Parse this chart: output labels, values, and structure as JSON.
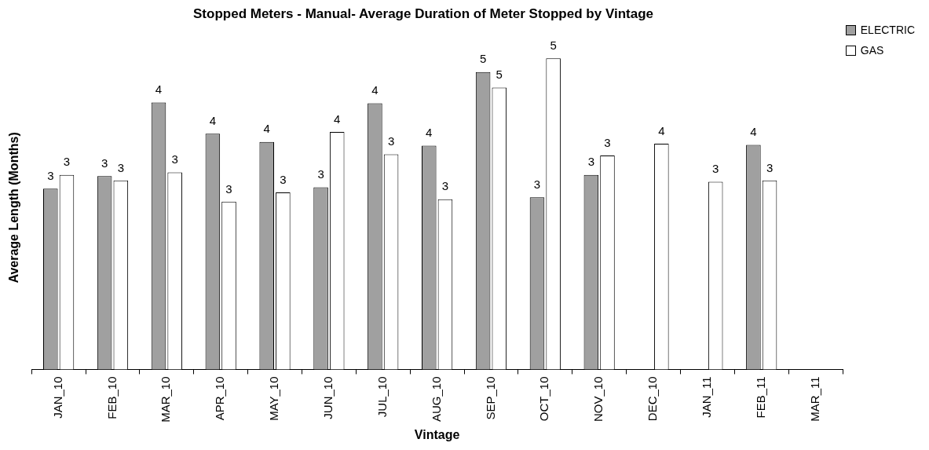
{
  "chart_data": {
    "type": "bar",
    "title": "Stopped Meters - Manual- Average Duration of Meter Stopped by Vintage",
    "xlabel": "Vintage",
    "ylabel": "Average Length (Months)",
    "categories": [
      "JAN_10",
      "FEB_10",
      "MAR_10",
      "APR_10",
      "MAY_10",
      "JUN_10",
      "JUL_10",
      "AUG_10",
      "SEP_10",
      "OCT_10",
      "NOV_10",
      "DEC_10",
      "JAN_11",
      "FEB_11",
      "MAR_11"
    ],
    "series": [
      {
        "name": "ELECTRIC",
        "color": "#a0a0a0",
        "values": [
          2.9,
          3.1,
          4.28,
          3.78,
          3.65,
          2.92,
          4.27,
          3.59,
          4.77,
          2.76,
          3.12,
          null,
          null,
          3.6,
          null
        ],
        "value_labels": [
          "3",
          "3",
          "4",
          "4",
          "4",
          "3",
          "4",
          "4",
          "5",
          "3",
          "3",
          null,
          null,
          "4",
          null
        ]
      },
      {
        "name": "GAS",
        "color": "#ffffff",
        "values": [
          3.12,
          3.03,
          3.16,
          2.69,
          2.84,
          3.81,
          3.45,
          2.73,
          4.52,
          4.99,
          3.43,
          3.62,
          3.01,
          3.03,
          null
        ],
        "value_labels": [
          "3",
          "3",
          "3",
          "3",
          "3",
          "4",
          "3",
          "3",
          "5",
          "5",
          "3",
          "4",
          "3",
          "3",
          null
        ]
      }
    ],
    "legend": "top right",
    "grid": false
  }
}
